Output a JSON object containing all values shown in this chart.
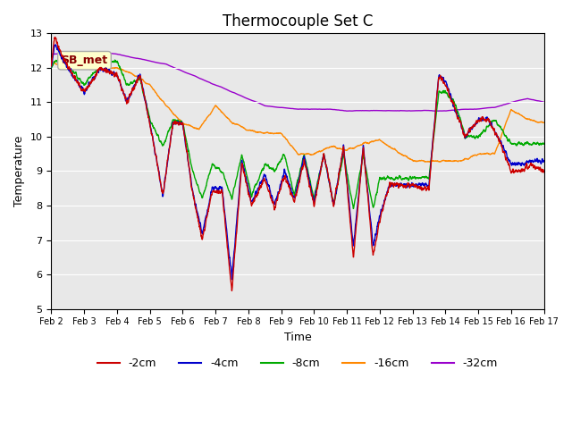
{
  "title": "Thermocouple Set C",
  "xlabel": "Time",
  "ylabel": "Temperature",
  "ylim": [
    5.0,
    13.0
  ],
  "yticks": [
    5.0,
    6.0,
    7.0,
    8.0,
    9.0,
    10.0,
    11.0,
    12.0,
    13.0
  ],
  "x_labels": [
    "Feb 2",
    "Feb 3",
    "Feb 4",
    "Feb 5",
    "Feb 6",
    "Feb 7",
    "Feb 8",
    "Feb 9",
    "Feb 10",
    "Feb 11",
    "Feb 12",
    "Feb 13",
    "Feb 14",
    "Feb 15",
    "Feb 16",
    "Feb 17"
  ],
  "colors": {
    "-2cm": "#cc0000",
    "-4cm": "#0000cc",
    "-8cm": "#00aa00",
    "-16cm": "#ff8800",
    "-32cm": "#9900cc"
  },
  "legend_labels": [
    "-2cm",
    "-4cm",
    "-8cm",
    "-16cm",
    "-32cm"
  ],
  "annotation_text": "SB_met",
  "bg_color": "#e8e8e8",
  "fig_color": "#ffffff",
  "title_fontsize": 12,
  "axis_fontsize": 9,
  "legend_fontsize": 9
}
